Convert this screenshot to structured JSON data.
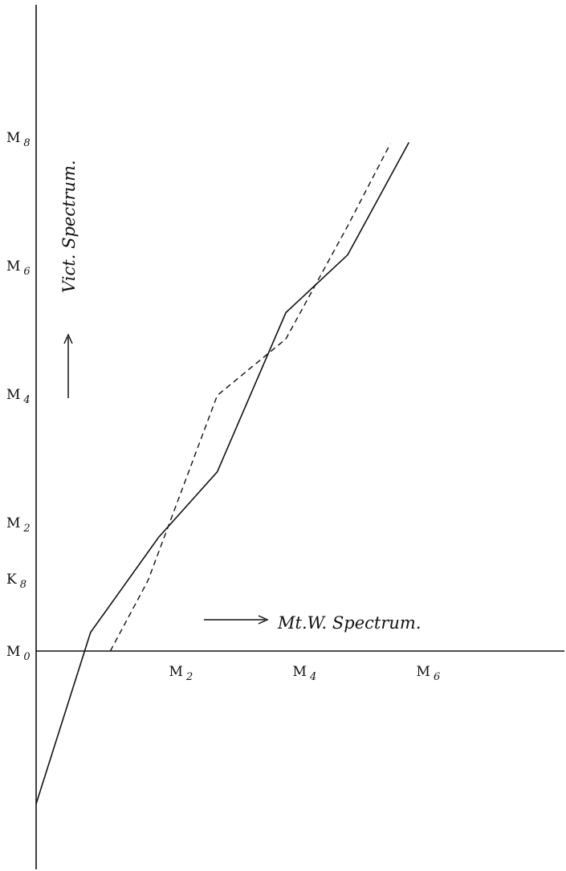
{
  "chart_data": {
    "type": "line",
    "title": "",
    "xlabel": "Mt.W. Spectrum.",
    "ylabel": "Vict. Spectrum.",
    "x_ticks": [
      {
        "value": 2,
        "label": "M",
        "sub": "2"
      },
      {
        "value": 4,
        "label": "M",
        "sub": "4"
      },
      {
        "value": 6,
        "label": "M",
        "sub": "6"
      }
    ],
    "y_ticks": [
      {
        "value": 8,
        "label": "M",
        "sub": "8"
      },
      {
        "value": 6,
        "label": "M",
        "sub": "6"
      },
      {
        "value": 4,
        "label": "M",
        "sub": "4"
      },
      {
        "value": 2,
        "label": "M",
        "sub": "2"
      },
      {
        "value": 0,
        "label": "M",
        "sub": "0"
      },
      {
        "value": -2,
        "label": "K",
        "sub": "8"
      }
    ],
    "xlim": [
      -0.28,
      8.4
    ],
    "ylim": [
      -3.45,
      9.85
    ],
    "grid": false,
    "series": [
      {
        "style": "solid",
        "points": [
          [
            -0.28,
            -2.38
          ],
          [
            0.6,
            0.29
          ],
          [
            1.7,
            1.77
          ],
          [
            2.65,
            2.79
          ],
          [
            3.76,
            5.27
          ],
          [
            4.76,
            6.17
          ],
          [
            5.75,
            7.92
          ]
        ]
      },
      {
        "style": "dashed",
        "points": [
          [
            0.92,
            0.0
          ],
          [
            1.53,
            1.1
          ],
          [
            2.65,
            3.98
          ],
          [
            3.76,
            4.86
          ],
          [
            4.76,
            6.62
          ],
          [
            5.45,
            7.9
          ]
        ]
      }
    ]
  }
}
